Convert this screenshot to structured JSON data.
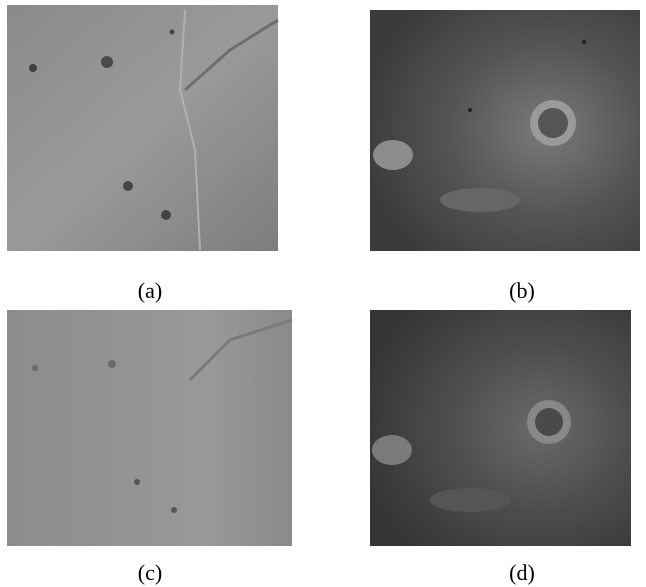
{
  "figure": {
    "panels": [
      {
        "caption": "(a)"
      },
      {
        "caption": "(b)"
      },
      {
        "caption": "(c)"
      },
      {
        "caption": "(d)"
      }
    ]
  }
}
